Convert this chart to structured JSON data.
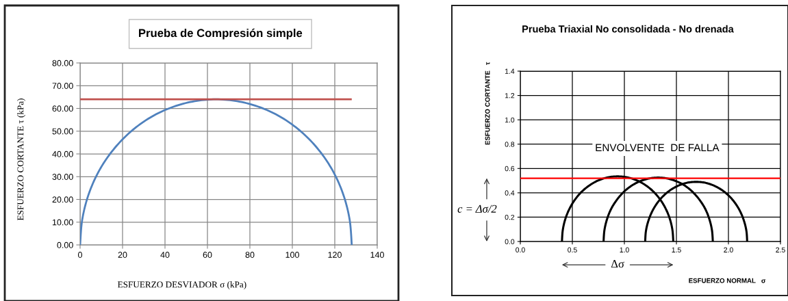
{
  "chart_data": [
    {
      "type": "line",
      "title": "Prueba de Compresión simple",
      "xlabel": "ESFUERZO DESVIADOR σ (kPa)",
      "ylabel": "ESFUERZO CORTANTE τ (kPa)",
      "series": [
        {
          "color": "#4f81bd",
          "x": [
            0,
            1.0,
            3.9,
            8.6,
            15.0,
            22.9,
            32.0,
            42.1,
            52.9,
            64.0,
            75.1,
            85.9,
            96.0,
            105.1,
            113.0,
            119.4,
            124.1,
            127.0,
            128.0
          ],
          "values": [
            0,
            11.1,
            21.9,
            32.0,
            41.1,
            49.0,
            55.4,
            60.1,
            63.0,
            64.0,
            63.0,
            60.1,
            55.4,
            49.0,
            41.1,
            32.0,
            21.9,
            11.1,
            0
          ]
        },
        {
          "color": "#c0504d",
          "x": [
            0,
            128.0
          ],
          "values": [
            64.0,
            64.0
          ]
        }
      ],
      "xlim": [
        0,
        140
      ],
      "ylim": [
        0,
        80
      ],
      "xticks": [
        0,
        20,
        40,
        60,
        80,
        100,
        120,
        140
      ],
      "yticks": [
        {
          "value": 0,
          "label": "0.00"
        },
        {
          "value": 10,
          "label": "10.00"
        },
        {
          "value": 20,
          "label": "20.00"
        },
        {
          "value": 30,
          "label": "30.00"
        },
        {
          "value": 40,
          "label": "40.00"
        },
        {
          "value": 50,
          "label": "50.00"
        },
        {
          "value": 60,
          "label": "60.00"
        },
        {
          "value": 70,
          "label": "70.00"
        },
        {
          "value": 80,
          "label": "80.00"
        }
      ],
      "grid": true,
      "marker": "none",
      "line_style": "solid"
    },
    {
      "type": "line",
      "title": "Prueba Triaxial No consolidada - No drenada",
      "xlabel": "ESFUERZO NORMAL   σ",
      "ylabel": "ESFUERZO CORTANTE   τ",
      "series": [
        {
          "color": "#000000",
          "x": [
            0.4,
            0.408,
            0.432,
            0.472,
            0.525,
            0.591,
            0.668,
            0.752,
            0.842,
            0.935,
            1.028,
            1.118,
            1.203,
            1.279,
            1.345,
            1.398,
            1.438,
            1.462,
            1.47
          ],
          "values": [
            0,
            0.093,
            0.183,
            0.268,
            0.344,
            0.41,
            0.463,
            0.503,
            0.527,
            0.535,
            0.527,
            0.503,
            0.463,
            0.41,
            0.344,
            0.268,
            0.183,
            0.093,
            0
          ]
        },
        {
          "color": "#000000",
          "x": [
            0.8,
            0.808,
            0.832,
            0.87,
            0.923,
            0.988,
            1.063,
            1.145,
            1.234,
            1.325,
            1.416,
            1.505,
            1.588,
            1.662,
            1.727,
            1.78,
            1.818,
            1.842,
            1.85
          ],
          "values": [
            0,
            0.091,
            0.18,
            0.263,
            0.337,
            0.402,
            0.455,
            0.493,
            0.517,
            0.525,
            0.517,
            0.493,
            0.455,
            0.402,
            0.337,
            0.263,
            0.18,
            0.091,
            0
          ]
        },
        {
          "color": "#000000",
          "x": [
            1.2,
            1.207,
            1.23,
            1.266,
            1.315,
            1.375,
            1.445,
            1.522,
            1.605,
            1.69,
            1.775,
            1.858,
            1.935,
            2.005,
            2.065,
            2.114,
            2.15,
            2.173,
            2.18
          ],
          "values": [
            0,
            0.085,
            0.168,
            0.245,
            0.315,
            0.375,
            0.424,
            0.46,
            0.483,
            0.49,
            0.483,
            0.46,
            0.424,
            0.375,
            0.315,
            0.245,
            0.168,
            0.085,
            0
          ]
        }
      ],
      "ref_lines": [
        {
          "axis": "y",
          "value": 0.52,
          "color": "#ff0000"
        }
      ],
      "annotations": [
        "ENVOLVENTE  DE FALLA",
        "c = Δσ/2",
        "Δσ"
      ],
      "xlim": [
        0,
        2.5
      ],
      "ylim": [
        0,
        1.4
      ],
      "xticks": [
        {
          "value": 0,
          "label": "0.0"
        },
        {
          "value": 0.5,
          "label": "0.5"
        },
        {
          "value": 1.0,
          "label": "1.0"
        },
        {
          "value": 1.5,
          "label": "1.5"
        },
        {
          "value": 2.0,
          "label": "2.0"
        },
        {
          "value": 2.5,
          "label": "2.5"
        }
      ],
      "yticks": [
        {
          "value": 0,
          "label": "0.0"
        },
        {
          "value": 0.2,
          "label": "0.2"
        },
        {
          "value": 0.4,
          "label": "0.4"
        },
        {
          "value": 0.6,
          "label": "0.6"
        },
        {
          "value": 0.8,
          "label": "0.8"
        },
        {
          "value": 1.0,
          "label": "1.0"
        },
        {
          "value": 1.2,
          "label": "1.2"
        },
        {
          "value": 1.4,
          "label": "1.4"
        }
      ],
      "grid": true,
      "marker": "none",
      "line_style": "solid"
    }
  ]
}
